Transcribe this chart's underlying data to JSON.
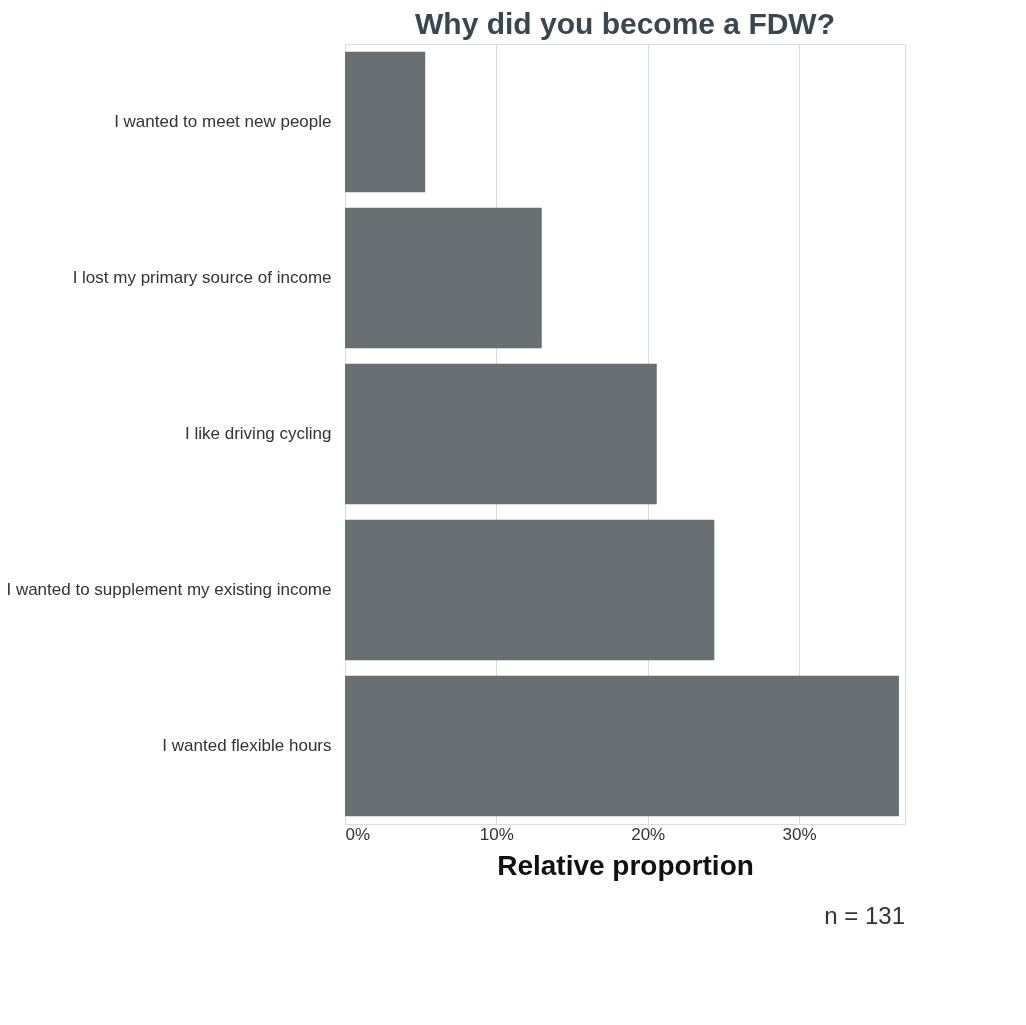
{
  "chart_data": {
    "type": "bar",
    "orientation": "horizontal",
    "title": "Why did you become a FDW?",
    "xlabel": "Relative proportion",
    "categories": [
      "I wanted to meet new people",
      "I lost my primary source of income",
      "I like driving cycling",
      "I wanted to supplement my existing income",
      "I wanted flexible hours"
    ],
    "values": [
      5.3,
      13.0,
      20.6,
      24.4,
      36.6
    ],
    "color": "#636b6f",
    "xlim": [
      0,
      37
    ],
    "xticks": [
      {
        "value": 0,
        "label": "0%"
      },
      {
        "value": 10,
        "label": "10%"
      },
      {
        "value": 20,
        "label": "20%"
      },
      {
        "value": 30,
        "label": "30%"
      }
    ],
    "grid": "x",
    "annotations": [
      "n = 131"
    ]
  }
}
